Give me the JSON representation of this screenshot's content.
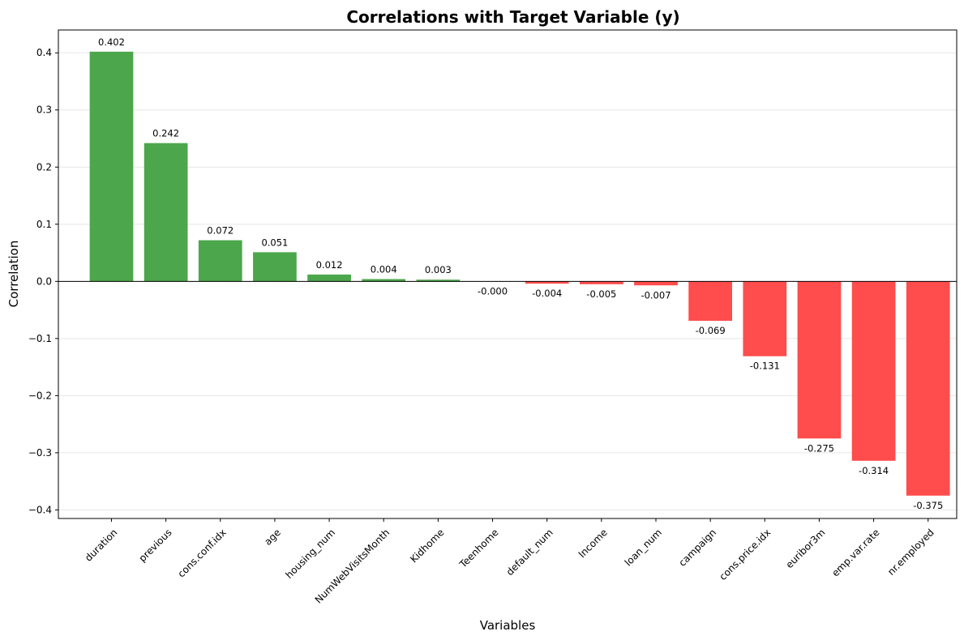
{
  "chart_data": {
    "type": "bar",
    "title": "Correlations with Target Variable (y)",
    "xlabel": "Variables",
    "ylabel": "Correlation",
    "categories": [
      "duration",
      "previous",
      "cons.conf.idx",
      "age",
      "housing_num",
      "NumWebVisitsMonth",
      "Kidhome",
      "Teenhome",
      "default_num",
      "Income",
      "loan_num",
      "campaign",
      "cons.price.idx",
      "euribor3m",
      "emp.var.rate",
      "nr.employed"
    ],
    "values": [
      0.402,
      0.242,
      0.072,
      0.051,
      0.012,
      0.004,
      0.003,
      -0.0001,
      -0.004,
      -0.005,
      -0.007,
      -0.069,
      -0.131,
      -0.275,
      -0.314,
      -0.375
    ],
    "value_labels": [
      "0.402",
      "0.242",
      "0.072",
      "0.051",
      "0.012",
      "0.004",
      "0.003",
      "-0.000",
      "-0.004",
      "-0.005",
      "-0.007",
      "-0.069",
      "-0.131",
      "-0.275",
      "-0.314",
      "-0.375"
    ],
    "ylim": [
      -0.415,
      0.44
    ],
    "yticks": [
      -0.4,
      -0.3,
      -0.2,
      -0.1,
      0.0,
      0.1,
      0.2,
      0.3,
      0.4
    ],
    "ytick_labels": [
      "−0.4",
      "−0.3",
      "−0.2",
      "−0.1",
      "0.0",
      "0.1",
      "0.2",
      "0.3",
      "0.4"
    ],
    "grid": "y",
    "zero_line": true,
    "colors": {
      "positive": "#4ca64c",
      "negative": "#ff4c4c",
      "grid": "#e6e6e6"
    }
  }
}
